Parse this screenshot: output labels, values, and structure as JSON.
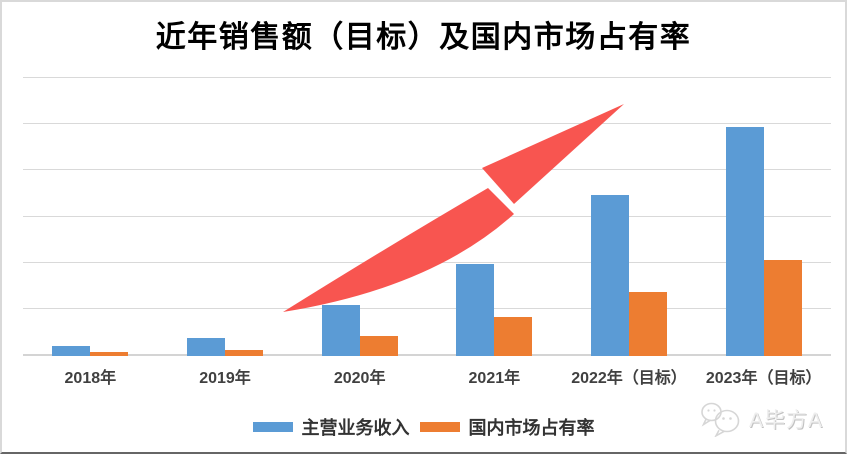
{
  "chart_data": {
    "type": "bar",
    "title": "近年销售额（目标）及国内市场占有率",
    "categories": [
      "2018年",
      "2019年",
      "2020年",
      "2021年",
      "2022年（目标）",
      "2023年（目标）"
    ],
    "series": [
      {
        "name": "主营业务收入",
        "color": "#5B9BD5",
        "values": [
          0.22,
          0.38,
          1.1,
          1.98,
          3.46,
          4.92
        ]
      },
      {
        "name": "国内市场占有率",
        "color": "#ED7D31",
        "values": [
          0.08,
          0.13,
          0.44,
          0.83,
          1.38,
          2.07
        ]
      }
    ],
    "value_units": "relative units; y-axis has no tick labels, 1 unit = one gridline interval",
    "ylim": [
      0,
      6
    ],
    "gridline_count": 7,
    "grid": "horizontal-only",
    "gridline_color": "#D9D9D9",
    "legend_position": "bottom",
    "xlabel": "",
    "ylabel": "",
    "annotation": {
      "type": "growth-arrow",
      "direction": "up-right",
      "color": "#F85550"
    }
  },
  "watermark": {
    "text": "A毕方A",
    "icon": "wechat-icon"
  }
}
